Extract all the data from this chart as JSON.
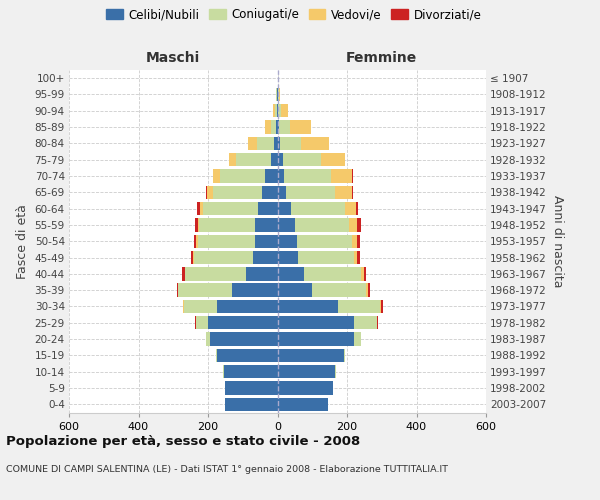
{
  "age_groups": [
    "0-4",
    "5-9",
    "10-14",
    "15-19",
    "20-24",
    "25-29",
    "30-34",
    "35-39",
    "40-44",
    "45-49",
    "50-54",
    "55-59",
    "60-64",
    "65-69",
    "70-74",
    "75-79",
    "80-84",
    "85-89",
    "90-94",
    "95-99",
    "100+"
  ],
  "birth_years": [
    "2003-2007",
    "1998-2002",
    "1993-1997",
    "1988-1992",
    "1983-1987",
    "1978-1982",
    "1973-1977",
    "1968-1972",
    "1963-1967",
    "1958-1962",
    "1953-1957",
    "1948-1952",
    "1943-1947",
    "1938-1942",
    "1933-1937",
    "1928-1932",
    "1923-1927",
    "1918-1922",
    "1913-1917",
    "1908-1912",
    "≤ 1907"
  ],
  "colors": {
    "celibi": "#3a6fa8",
    "coniugati": "#c8dca0",
    "vedovi": "#f5c96a",
    "divorziati": "#cc2222"
  },
  "males": {
    "celibi": [
      150,
      150,
      155,
      175,
      195,
      200,
      175,
      130,
      90,
      70,
      65,
      65,
      55,
      45,
      35,
      20,
      10,
      5,
      2,
      1,
      0
    ],
    "coniugati": [
      0,
      0,
      2,
      3,
      10,
      35,
      95,
      155,
      175,
      170,
      165,
      160,
      160,
      140,
      130,
      100,
      50,
      15,
      5,
      2,
      0
    ],
    "vedovi": [
      0,
      0,
      0,
      0,
      0,
      0,
      1,
      1,
      2,
      3,
      4,
      5,
      8,
      18,
      20,
      20,
      25,
      15,
      5,
      2,
      0
    ],
    "divorziati": [
      0,
      0,
      0,
      0,
      0,
      2,
      2,
      3,
      8,
      7,
      5,
      6,
      8,
      3,
      2,
      0,
      0,
      0,
      0,
      0,
      0
    ]
  },
  "females": {
    "nubili": [
      145,
      160,
      165,
      190,
      220,
      220,
      175,
      100,
      75,
      60,
      55,
      50,
      40,
      25,
      20,
      15,
      8,
      5,
      2,
      1,
      0
    ],
    "coniugate": [
      0,
      0,
      2,
      5,
      20,
      65,
      120,
      155,
      165,
      160,
      160,
      155,
      155,
      140,
      135,
      110,
      60,
      30,
      8,
      2,
      0
    ],
    "vedove": [
      0,
      0,
      0,
      0,
      0,
      2,
      3,
      5,
      8,
      10,
      15,
      25,
      30,
      50,
      60,
      70,
      80,
      60,
      20,
      5,
      1
    ],
    "divorziate": [
      0,
      0,
      0,
      0,
      0,
      2,
      5,
      5,
      8,
      8,
      8,
      10,
      8,
      2,
      2,
      0,
      0,
      0,
      0,
      0,
      0
    ]
  },
  "xlim": 600,
  "title": "Popolazione per età, sesso e stato civile - 2008",
  "subtitle": "COMUNE DI CAMPI SALENTINA (LE) - Dati ISTAT 1° gennaio 2008 - Elaborazione TUTTITALIA.IT",
  "xlabel_left": "Maschi",
  "xlabel_right": "Femmine",
  "ylabel_left": "Fasce di età",
  "ylabel_right": "Anni di nascita",
  "legend_labels": [
    "Celibi/Nubili",
    "Coniugati/e",
    "Vedovi/e",
    "Divorziati/e"
  ],
  "bg_color": "#f0f0f0",
  "plot_bg": "#ffffff"
}
